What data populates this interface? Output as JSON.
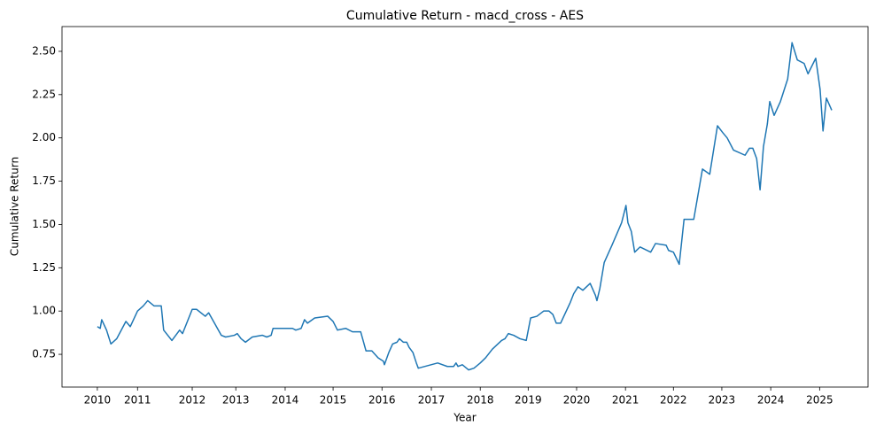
{
  "chart_data": {
    "type": "line",
    "title": "Cumulative Return - macd_cross - AES",
    "x_label": "Year",
    "y_label": "Cumulative Return",
    "color": "#1f77b4",
    "x": [
      2010.04,
      2010.1,
      2010.13,
      2010.23,
      2010.32,
      2010.44,
      2010.63,
      2010.72,
      2010.87,
      2010.99,
      2011.08,
      2011.21,
      2011.36,
      2011.41,
      2011.58,
      2011.74,
      2011.8,
      2012.0,
      2012.09,
      2012.27,
      2012.34,
      2012.6,
      2012.69,
      2012.87,
      2012.93,
      2013.01,
      2013.1,
      2013.24,
      2013.45,
      2013.54,
      2013.63,
      2013.67,
      2013.92,
      2014.07,
      2014.14,
      2014.25,
      2014.32,
      2014.38,
      2014.53,
      2014.8,
      2014.91,
      2015.0,
      2015.17,
      2015.31,
      2015.48,
      2015.59,
      2015.71,
      2015.84,
      2015.95,
      2015.97,
      2016.06,
      2016.14,
      2016.23,
      2016.28,
      2016.36,
      2016.43,
      2016.48,
      2016.56,
      2016.63,
      2016.67,
      2017.07,
      2017.27,
      2017.4,
      2017.45,
      2017.49,
      2017.58,
      2017.71,
      2017.82,
      2017.95,
      2018.06,
      2018.2,
      2018.39,
      2018.46,
      2018.53,
      2018.64,
      2018.77,
      2018.9,
      2018.99,
      2019.12,
      2019.26,
      2019.37,
      2019.45,
      2019.52,
      2019.61,
      2019.81,
      2019.88,
      2019.97,
      2020.07,
      2020.22,
      2020.33,
      2020.36,
      2020.42,
      2020.51,
      2020.67,
      2020.87,
      2020.96,
      2021.0,
      2021.07,
      2021.14,
      2021.25,
      2021.47,
      2021.57,
      2021.79,
      2021.84,
      2021.94,
      2022.06,
      2022.16,
      2022.36,
      2022.54,
      2022.69,
      2022.85,
      2022.96,
      2023.05,
      2023.18,
      2023.42,
      2023.51,
      2023.58,
      2023.66,
      2023.73,
      2023.8,
      2023.88,
      2023.93,
      2024.02,
      2024.15,
      2024.3,
      2024.39,
      2024.5,
      2024.64,
      2024.72,
      2024.88,
      2024.97,
      2025.03,
      2025.1,
      2025.21
    ],
    "values": [
      0.91,
      0.9,
      0.95,
      0.89,
      0.81,
      0.84,
      0.94,
      0.91,
      1.0,
      1.03,
      1.06,
      1.03,
      1.03,
      0.89,
      0.83,
      0.89,
      0.87,
      1.01,
      1.01,
      0.97,
      0.99,
      0.86,
      0.85,
      0.86,
      0.87,
      0.84,
      0.82,
      0.85,
      0.86,
      0.85,
      0.86,
      0.9,
      0.9,
      0.9,
      0.89,
      0.9,
      0.95,
      0.93,
      0.96,
      0.97,
      0.94,
      0.89,
      0.9,
      0.88,
      0.88,
      0.77,
      0.77,
      0.73,
      0.71,
      0.69,
      0.76,
      0.81,
      0.82,
      0.84,
      0.82,
      0.82,
      0.79,
      0.76,
      0.7,
      0.67,
      0.7,
      0.68,
      0.68,
      0.7,
      0.68,
      0.69,
      0.66,
      0.67,
      0.7,
      0.73,
      0.78,
      0.83,
      0.84,
      0.87,
      0.86,
      0.84,
      0.83,
      0.96,
      0.97,
      1.0,
      1.0,
      0.98,
      0.93,
      0.93,
      1.05,
      1.1,
      1.14,
      1.12,
      1.16,
      1.09,
      1.06,
      1.13,
      1.28,
      1.38,
      1.51,
      1.61,
      1.51,
      1.46,
      1.34,
      1.37,
      1.34,
      1.39,
      1.38,
      1.35,
      1.34,
      1.27,
      1.53,
      1.53,
      1.82,
      1.79,
      2.07,
      2.03,
      2.0,
      1.93,
      1.9,
      1.94,
      1.94,
      1.88,
      1.7,
      1.95,
      2.08,
      2.21,
      2.13,
      2.21,
      2.34,
      2.55,
      2.45,
      2.43,
      2.37,
      2.46,
      2.28,
      2.04,
      2.23,
      2.16
    ],
    "xlim": [
      2009.31,
      2025.96
    ],
    "ylim": [
      0.561,
      2.643
    ],
    "xticks": [
      {
        "value": 2010.04,
        "label": "2010"
      },
      {
        "value": 2010.87,
        "label": "2011"
      },
      {
        "value": 2012.0,
        "label": "2012"
      },
      {
        "value": 2012.9,
        "label": "2013"
      },
      {
        "value": 2013.92,
        "label": "2014"
      },
      {
        "value": 2014.91,
        "label": "2015"
      },
      {
        "value": 2015.92,
        "label": "2016"
      },
      {
        "value": 2016.94,
        "label": "2017"
      },
      {
        "value": 2017.95,
        "label": "2018"
      },
      {
        "value": 2018.94,
        "label": "2019"
      },
      {
        "value": 2019.94,
        "label": "2020"
      },
      {
        "value": 2020.95,
        "label": "2021"
      },
      {
        "value": 2021.94,
        "label": "2022"
      },
      {
        "value": 2022.94,
        "label": "2023"
      },
      {
        "value": 2023.95,
        "label": "2024"
      },
      {
        "value": 2024.96,
        "label": "2025"
      }
    ],
    "yticks": [
      0.75,
      {
        "value": 1.0,
        "label": "1.00"
      },
      1.25,
      {
        "value": 1.5,
        "label": "1.50"
      },
      1.75,
      {
        "value": 2.0,
        "label": "2.00"
      },
      2.25,
      {
        "value": 2.5,
        "label": "2.50"
      }
    ]
  }
}
